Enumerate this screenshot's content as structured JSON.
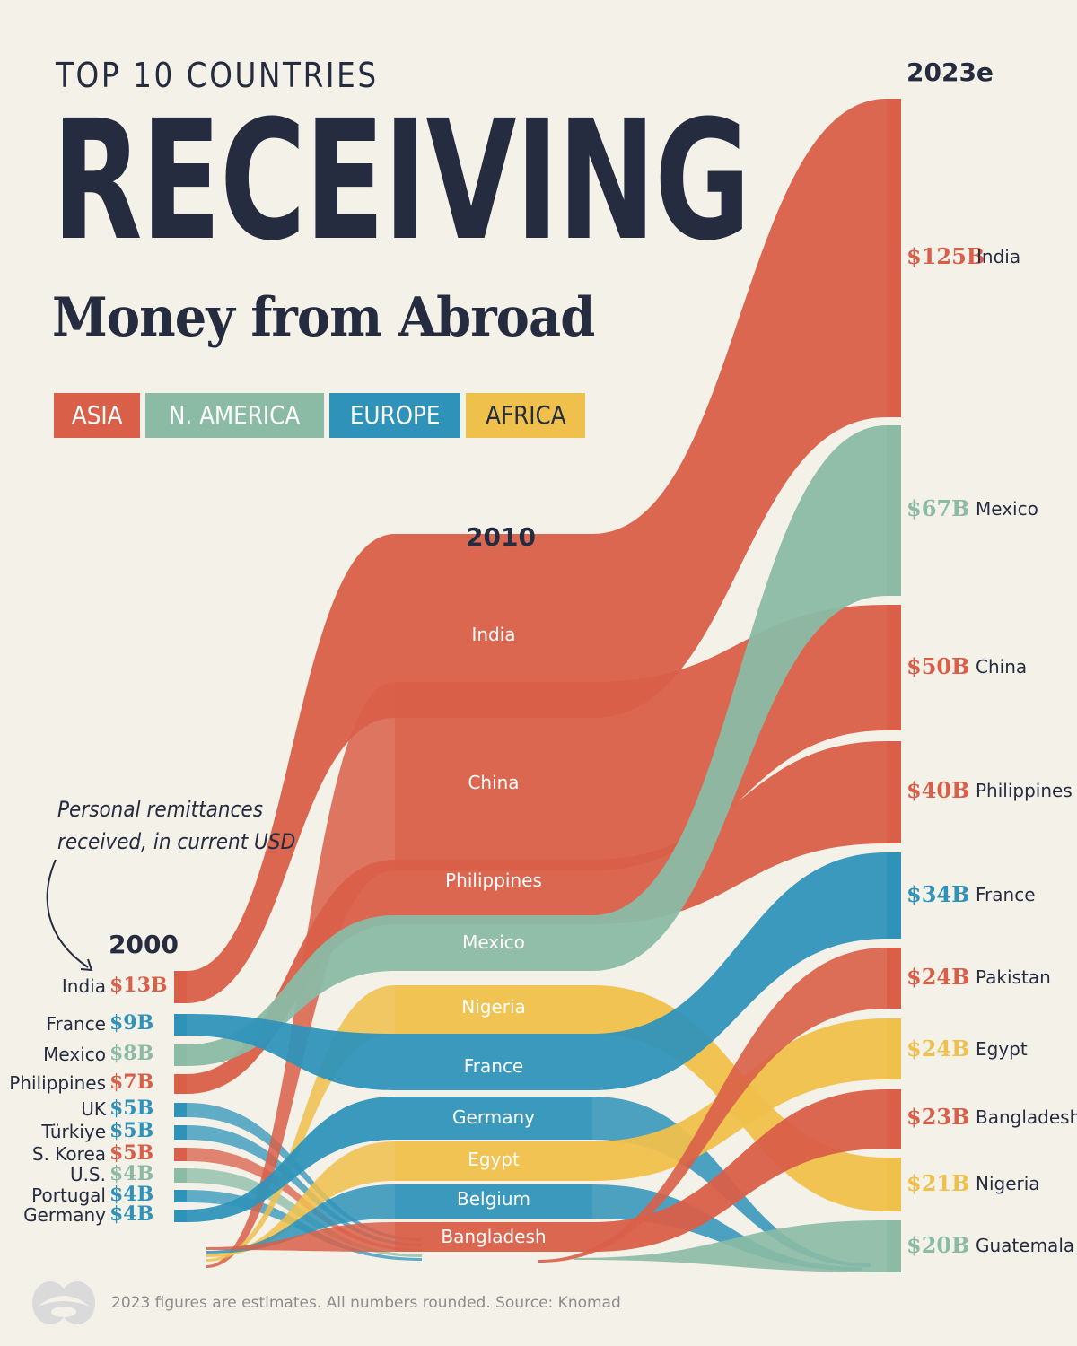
{
  "header": {
    "supertitle": "TOP 10 COUNTRIES",
    "title": "RECEIVING",
    "subtitle": "Money from Abroad"
  },
  "legend": [
    {
      "label": "ASIA",
      "color": "#d95f48"
    },
    {
      "label": "N. AMERICA",
      "color": "#8bbba5"
    },
    {
      "label": "EUROPE",
      "color": "#2f93b9"
    },
    {
      "label": "AFRICA",
      "color": "#efc04b"
    }
  ],
  "note": {
    "line1": "Personal remittances",
    "line2": "received, in current USD"
  },
  "footer": {
    "source": "2023 figures are estimates. All numbers rounded. Source: Knomad",
    "logo_icon": "visual-capitalist-logo-icon"
  },
  "chart_data": {
    "type": "sankey",
    "units": "USD billions",
    "stages": [
      "2000",
      "2010",
      "2023e"
    ],
    "region_colors": {
      "Asia": "#d95f48",
      "N. America": "#8bbba5",
      "Europe": "#2f93b9",
      "Africa": "#efc04b"
    },
    "columns": {
      "2000": [
        {
          "country": "India",
          "value": 13,
          "label": "$13B",
          "region": "Asia"
        },
        {
          "country": "France",
          "value": 9,
          "label": "$9B",
          "region": "Europe"
        },
        {
          "country": "Mexico",
          "value": 8,
          "label": "$8B",
          "region": "N. America"
        },
        {
          "country": "Philippines",
          "value": 7,
          "label": "$7B",
          "region": "Asia"
        },
        {
          "country": "UK",
          "value": 5,
          "label": "$5B",
          "region": "Europe"
        },
        {
          "country": "Türkiye",
          "value": 5,
          "label": "$5B",
          "region": "Europe"
        },
        {
          "country": "S. Korea",
          "value": 5,
          "label": "$5B",
          "region": "Asia"
        },
        {
          "country": "U.S.",
          "value": 4,
          "label": "$4B",
          "region": "N. America"
        },
        {
          "country": "Portugal",
          "value": 4,
          "label": "$4B",
          "region": "Europe"
        },
        {
          "country": "Germany",
          "value": 4,
          "label": "$4B",
          "region": "Europe"
        }
      ],
      "2010": [
        {
          "country": "India",
          "region": "Asia"
        },
        {
          "country": "China",
          "region": "Asia"
        },
        {
          "country": "Philippines",
          "region": "Asia"
        },
        {
          "country": "Mexico",
          "region": "N. America"
        },
        {
          "country": "Nigeria",
          "region": "Africa"
        },
        {
          "country": "France",
          "region": "Europe"
        },
        {
          "country": "Germany",
          "region": "Europe"
        },
        {
          "country": "Egypt",
          "region": "Africa"
        },
        {
          "country": "Belgium",
          "region": "Europe"
        },
        {
          "country": "Bangladesh",
          "region": "Asia"
        }
      ],
      "2023e": [
        {
          "country": "India",
          "value": 125,
          "label": "$125B",
          "region": "Asia"
        },
        {
          "country": "Mexico",
          "value": 67,
          "label": "$67B",
          "region": "N. America"
        },
        {
          "country": "China",
          "value": 50,
          "label": "$50B",
          "region": "Asia"
        },
        {
          "country": "Philippines",
          "value": 40,
          "label": "$40B",
          "region": "Asia"
        },
        {
          "country": "France",
          "value": 34,
          "label": "$34B",
          "region": "Europe"
        },
        {
          "country": "Pakistan",
          "value": 24,
          "label": "$24B",
          "region": "Asia"
        },
        {
          "country": "Egypt",
          "value": 24,
          "label": "$24B",
          "region": "Africa"
        },
        {
          "country": "Bangladesh",
          "value": 23,
          "label": "$23B",
          "region": "Asia"
        },
        {
          "country": "Nigeria",
          "value": 21,
          "label": "$21B",
          "region": "Africa"
        },
        {
          "country": "Guatemala",
          "value": 20,
          "label": "$20B",
          "region": "N. America"
        }
      ]
    }
  }
}
